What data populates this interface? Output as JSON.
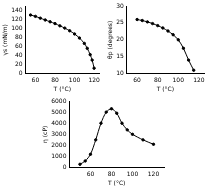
{
  "chart_data": [
    {
      "type": "line",
      "x_label": "T (°C)",
      "y_label": "γs (mN/m)",
      "x": [
        55,
        60,
        65,
        70,
        75,
        80,
        85,
        90,
        95,
        100,
        105,
        110,
        113,
        116,
        118,
        120
      ],
      "values": [
        130,
        127,
        123,
        119,
        115,
        111,
        106,
        101,
        95,
        88,
        79,
        67,
        56,
        42,
        30,
        12
      ],
      "xlim": [
        50,
        125
      ],
      "xticks": [
        60,
        80,
        100,
        120
      ],
      "ylim": [
        0,
        150
      ],
      "yticks": [
        0,
        20,
        40,
        60,
        80,
        100,
        120,
        140
      ],
      "color": "#000000",
      "marker": "circle",
      "line_style": "solid",
      "grid": false
    },
    {
      "type": "line",
      "x_label": "T (°C)",
      "y_label": "θp (degrees)",
      "x": [
        60,
        65,
        70,
        75,
        80,
        85,
        90,
        95,
        100,
        105,
        110,
        115
      ],
      "values": [
        26,
        25.7,
        25.3,
        24.8,
        24.2,
        23.5,
        22.6,
        21.5,
        20,
        17.5,
        14,
        11
      ],
      "xlim": [
        50,
        125
      ],
      "xticks": [
        60,
        80,
        100,
        120
      ],
      "ylim": [
        10,
        30
      ],
      "yticks": [
        10,
        15,
        20,
        25,
        30
      ],
      "color": "#000000",
      "marker": "circle",
      "line_style": "solid",
      "grid": false
    },
    {
      "type": "line",
      "x_label": "T (°C)",
      "y_label": "η (cP)",
      "x": [
        50,
        55,
        60,
        65,
        70,
        75,
        80,
        85,
        90,
        95,
        100,
        110,
        120
      ],
      "values": [
        300,
        600,
        1200,
        2500,
        4000,
        5000,
        5300,
        4900,
        4000,
        3400,
        3000,
        2500,
        2100
      ],
      "xlim": [
        40,
        130
      ],
      "xticks": [
        60,
        80,
        100,
        120
      ],
      "ylim": [
        0,
        6000
      ],
      "yticks": [
        0,
        1000,
        2000,
        3000,
        4000,
        5000,
        6000
      ],
      "color": "#000000",
      "marker": "circle",
      "line_style": "solid",
      "grid": false
    }
  ]
}
